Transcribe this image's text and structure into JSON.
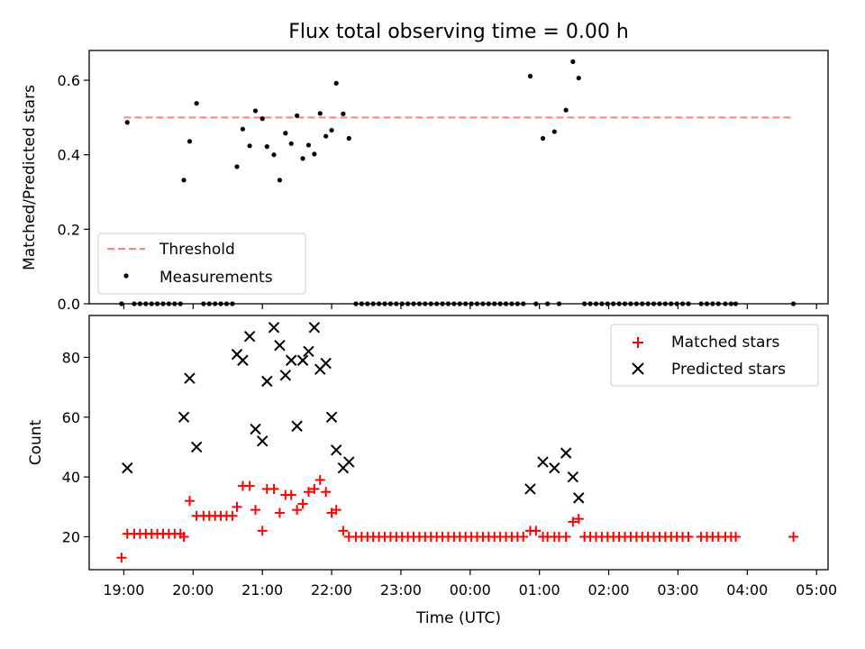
{
  "chart_data": [
    {
      "type": "scatter",
      "title": "Flux total observing time = 0.00 h",
      "xlabel": "",
      "ylabel": "Matched/Predicted stars",
      "xlim": [
        "18:30",
        "05:10"
      ],
      "ylim": [
        0,
        0.68
      ],
      "yticks": [
        0.0,
        0.2,
        0.4,
        0.6
      ],
      "ytick_labels": [
        "0.0",
        "0.2",
        "0.4",
        "0.6"
      ],
      "legend_placement": "lower-left",
      "grid": false,
      "series": [
        {
          "name": "Threshold",
          "style": "dashed-line",
          "color": "#ff7f7f",
          "x": [
            "19:00",
            "04:40"
          ],
          "y": [
            0.5,
            0.5
          ]
        },
        {
          "name": "Measurements",
          "style": "dot",
          "color": "#000000",
          "x": [
            "19:03",
            "19:52",
            "19:57",
            "20:03",
            "20:38",
            "20:43",
            "20:49",
            "20:54",
            "21:00",
            "21:04",
            "21:10",
            "21:15",
            "21:20",
            "21:25",
            "21:30",
            "21:35",
            "21:40",
            "21:45",
            "21:50",
            "21:55",
            "22:00",
            "22:04",
            "22:10",
            "22:15",
            "00:52",
            "01:03",
            "01:13",
            "01:23",
            "01:29",
            "01:34",
            "18:58",
            "19:09",
            "19:14",
            "19:19",
            "19:24",
            "19:29",
            "19:34",
            "19:39",
            "19:44",
            "19:49",
            "20:09",
            "20:14",
            "20:19",
            "20:24",
            "20:29",
            "20:34",
            "22:21",
            "22:26",
            "22:31",
            "22:36",
            "22:41",
            "22:46",
            "22:51",
            "22:56",
            "23:01",
            "23:06",
            "23:11",
            "23:16",
            "23:21",
            "23:26",
            "23:31",
            "23:36",
            "23:41",
            "23:46",
            "23:51",
            "23:56",
            "00:01",
            "00:06",
            "00:11",
            "00:16",
            "00:21",
            "00:26",
            "00:31",
            "00:36",
            "00:41",
            "00:46",
            "00:57",
            "01:07",
            "01:17",
            "01:39",
            "01:44",
            "01:49",
            "01:54",
            "01:59",
            "02:04",
            "02:09",
            "02:14",
            "02:19",
            "02:24",
            "02:29",
            "02:34",
            "02:39",
            "02:44",
            "02:49",
            "02:54",
            "02:59",
            "03:04",
            "03:09",
            "03:20",
            "03:25",
            "03:30",
            "03:35",
            "03:41",
            "03:46",
            "03:50",
            "04:40"
          ],
          "y": [
            0.487,
            0.332,
            0.436,
            0.538,
            0.368,
            0.469,
            0.424,
            0.518,
            0.497,
            0.422,
            0.4,
            0.332,
            0.458,
            0.43,
            0.505,
            0.39,
            0.426,
            0.402,
            0.511,
            0.45,
            0.466,
            0.592,
            0.51,
            0.444,
            0.611,
            0.444,
            0.462,
            0.52,
            0.65,
            0.606,
            0,
            0,
            0,
            0,
            0,
            0,
            0,
            0,
            0,
            0,
            0,
            0,
            0,
            0,
            0,
            0,
            0,
            0,
            0,
            0,
            0,
            0,
            0,
            0,
            0,
            0,
            0,
            0,
            0,
            0,
            0,
            0,
            0,
            0,
            0,
            0,
            0,
            0,
            0,
            0,
            0,
            0,
            0,
            0,
            0,
            0,
            0,
            0,
            0,
            0,
            0,
            0,
            0,
            0,
            0,
            0,
            0,
            0,
            0,
            0,
            0,
            0,
            0,
            0,
            0,
            0,
            0,
            0,
            0,
            0,
            0,
            0,
            0,
            0,
            0,
            0
          ]
        }
      ]
    },
    {
      "type": "scatter",
      "title": "",
      "xlabel": "Time (UTC)",
      "ylabel": "Count",
      "xlim": [
        "18:30",
        "05:10"
      ],
      "ylim": [
        9,
        94
      ],
      "yticks": [
        20,
        40,
        60,
        80
      ],
      "ytick_labels": [
        "20",
        "40",
        "60",
        "80"
      ],
      "xticks": [
        "19:00",
        "20:00",
        "21:00",
        "22:00",
        "23:00",
        "00:00",
        "01:00",
        "02:00",
        "03:00",
        "04:00",
        "05:00"
      ],
      "legend_placement": "top-right",
      "grid": false,
      "series": [
        {
          "name": "Matched stars",
          "marker": "plus",
          "color": "#ff0000",
          "x": [
            "18:58",
            "19:03",
            "19:09",
            "19:14",
            "19:19",
            "19:24",
            "19:29",
            "19:34",
            "19:39",
            "19:44",
            "19:49",
            "19:52",
            "19:57",
            "20:03",
            "20:09",
            "20:14",
            "20:19",
            "20:24",
            "20:29",
            "20:34",
            "20:38",
            "20:43",
            "20:49",
            "20:54",
            "21:00",
            "21:04",
            "21:10",
            "21:15",
            "21:20",
            "21:25",
            "21:30",
            "21:35",
            "21:40",
            "21:45",
            "21:50",
            "21:55",
            "22:00",
            "22:04",
            "22:10",
            "22:15",
            "22:21",
            "22:26",
            "22:31",
            "22:36",
            "22:41",
            "22:46",
            "22:51",
            "22:56",
            "23:01",
            "23:06",
            "23:11",
            "23:16",
            "23:21",
            "23:26",
            "23:31",
            "23:36",
            "23:41",
            "23:46",
            "23:51",
            "23:56",
            "00:01",
            "00:06",
            "00:11",
            "00:16",
            "00:21",
            "00:26",
            "00:31",
            "00:36",
            "00:41",
            "00:46",
            "00:52",
            "00:57",
            "01:03",
            "01:07",
            "01:13",
            "01:17",
            "01:23",
            "01:29",
            "01:34",
            "01:39",
            "01:44",
            "01:49",
            "01:54",
            "01:59",
            "02:04",
            "02:09",
            "02:14",
            "02:19",
            "02:24",
            "02:29",
            "02:34",
            "02:39",
            "02:44",
            "02:49",
            "02:54",
            "02:59",
            "03:04",
            "03:09",
            "03:20",
            "03:25",
            "03:30",
            "03:35",
            "03:41",
            "03:46",
            "03:50",
            "04:40"
          ],
          "y": [
            13,
            21,
            21,
            21,
            21,
            21,
            21,
            21,
            21,
            21,
            21,
            20,
            32,
            27,
            27,
            27,
            27,
            27,
            27,
            27,
            30,
            37,
            37,
            29,
            22,
            36,
            36,
            28,
            34,
            34,
            29,
            31,
            35,
            36,
            39,
            35,
            28,
            29,
            22,
            20,
            20,
            20,
            20,
            20,
            20,
            20,
            20,
            20,
            20,
            20,
            20,
            20,
            20,
            20,
            20,
            20,
            20,
            20,
            20,
            20,
            20,
            20,
            20,
            20,
            20,
            20,
            20,
            20,
            20,
            20,
            22,
            22,
            20,
            20,
            20,
            20,
            20,
            25,
            26,
            20,
            20,
            20,
            20,
            20,
            20,
            20,
            20,
            20,
            20,
            20,
            20,
            20,
            20,
            20,
            20,
            20,
            20,
            20,
            20,
            20,
            20,
            20,
            20,
            20,
            20,
            20
          ]
        },
        {
          "name": "Predicted stars",
          "marker": "x",
          "color": "#000000",
          "x": [
            "19:03",
            "19:52",
            "19:57",
            "20:03",
            "20:38",
            "20:43",
            "20:49",
            "20:54",
            "21:00",
            "21:04",
            "21:10",
            "21:15",
            "21:20",
            "21:25",
            "21:30",
            "21:35",
            "21:40",
            "21:45",
            "21:50",
            "21:55",
            "22:00",
            "22:04",
            "22:10",
            "22:15",
            "00:52",
            "01:03",
            "01:13",
            "01:23",
            "01:29",
            "01:34"
          ],
          "y": [
            43,
            60,
            73,
            50,
            81,
            79,
            87,
            56,
            52,
            72,
            90,
            84,
            74,
            79,
            57,
            79,
            82,
            90,
            76,
            78,
            60,
            49,
            43,
            45,
            36,
            45,
            43,
            48,
            40,
            33
          ]
        }
      ]
    }
  ],
  "colors": {
    "threshold": "#ff7f7f",
    "measurements": "#000000",
    "matched": "#ff0000",
    "predicted": "#000000"
  }
}
